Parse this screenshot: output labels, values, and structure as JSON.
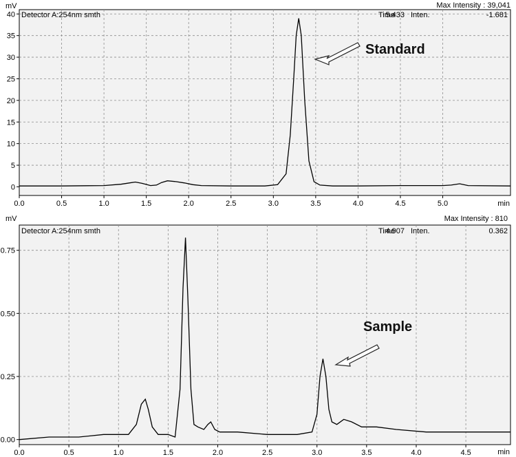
{
  "chart_data": [
    {
      "type": "line",
      "ylabel": "mV",
      "xunit": "min",
      "detector": "Detector A:254nm smth",
      "max_intensity_label": "Max Intensity :",
      "max_intensity": "39,041",
      "time_label": "Time",
      "time": "5.433",
      "inten_label": "Inten.",
      "inten": "-1.681",
      "annotation": "Standard",
      "xlim": [
        0,
        5.8
      ],
      "ylim": [
        -2,
        41
      ],
      "xticks": [
        0,
        0.5,
        1.0,
        1.5,
        2.0,
        2.5,
        3.0,
        3.5,
        4.0,
        4.5,
        5.0
      ],
      "xtick_labels": [
        "0.0",
        "0.5",
        "1.0",
        "1.5",
        "2.0",
        "2.5",
        "3.0",
        "3.5",
        "4.0",
        "4.5",
        "5.0"
      ],
      "yticks": [
        0,
        5,
        10,
        15,
        20,
        25,
        30,
        35,
        40
      ],
      "ytick_labels": [
        "0",
        "5",
        "10",
        "15",
        "20",
        "25",
        "30",
        "35",
        "40"
      ],
      "grid": true,
      "series": [
        {
          "x": [
            0,
            0.5,
            1.0,
            1.2,
            1.3,
            1.37,
            1.45,
            1.55,
            1.62,
            1.68,
            1.75,
            1.85,
            1.95,
            2.05,
            2.15,
            2.5,
            2.9,
            3.05,
            3.15,
            3.2,
            3.24,
            3.27,
            3.3,
            3.33,
            3.37,
            3.42,
            3.48,
            3.55,
            3.7,
            4.0,
            4.5,
            5.0,
            5.1,
            5.2,
            5.3,
            5.8
          ],
          "y": [
            0.2,
            0.2,
            0.3,
            0.6,
            0.9,
            1.1,
            0.8,
            0.3,
            0.4,
            1.0,
            1.4,
            1.2,
            0.9,
            0.5,
            0.3,
            0.2,
            0.2,
            0.5,
            3,
            12,
            25,
            35,
            39,
            35,
            20,
            6,
            1.2,
            0.4,
            0.2,
            0.2,
            0.3,
            0.3,
            0.4,
            0.7,
            0.3,
            0.2
          ]
        }
      ]
    },
    {
      "type": "line",
      "ylabel": "mV",
      "xunit": "min",
      "detector": "Detector A:254nm smth",
      "max_intensity_label": "Max Intensity :",
      "max_intensity": "810",
      "time_label": "Time",
      "time": "4.907",
      "inten_label": "Inten.",
      "inten": "0.362",
      "annotation": "Sample",
      "xlim": [
        0,
        4.95
      ],
      "ylim": [
        -0.02,
        0.85
      ],
      "xticks": [
        0,
        0.5,
        1.0,
        1.5,
        2.0,
        2.5,
        3.0,
        3.5,
        4.0,
        4.5
      ],
      "xtick_labels": [
        "0.0",
        "0.5",
        "1.0",
        "1.5",
        "2.0",
        "2.5",
        "3.0",
        "3.5",
        "4.0",
        "4.5"
      ],
      "yticks": [
        0,
        0.25,
        0.5,
        0.75
      ],
      "ytick_labels": [
        "0.00",
        "0.25",
        "0.50",
        "0.75"
      ],
      "grid": true,
      "series": [
        {
          "x": [
            0,
            0.3,
            0.6,
            0.85,
            1.0,
            1.1,
            1.18,
            1.23,
            1.27,
            1.3,
            1.34,
            1.4,
            1.5,
            1.57,
            1.62,
            1.65,
            1.675,
            1.7,
            1.73,
            1.76,
            1.8,
            1.86,
            1.9,
            1.93,
            1.97,
            2.02,
            2.2,
            2.5,
            2.8,
            2.95,
            3.0,
            3.03,
            3.06,
            3.09,
            3.12,
            3.15,
            3.2,
            3.27,
            3.35,
            3.45,
            3.6,
            3.8,
            4.1,
            4.4,
            4.7,
            4.95
          ],
          "y": [
            0.0,
            0.01,
            0.01,
            0.02,
            0.02,
            0.02,
            0.06,
            0.14,
            0.16,
            0.12,
            0.05,
            0.02,
            0.02,
            0.01,
            0.2,
            0.6,
            0.8,
            0.55,
            0.2,
            0.06,
            0.05,
            0.04,
            0.06,
            0.07,
            0.04,
            0.03,
            0.03,
            0.02,
            0.02,
            0.03,
            0.1,
            0.25,
            0.32,
            0.25,
            0.12,
            0.07,
            0.06,
            0.08,
            0.07,
            0.05,
            0.05,
            0.04,
            0.03,
            0.03,
            0.03,
            0.03
          ]
        }
      ]
    }
  ]
}
